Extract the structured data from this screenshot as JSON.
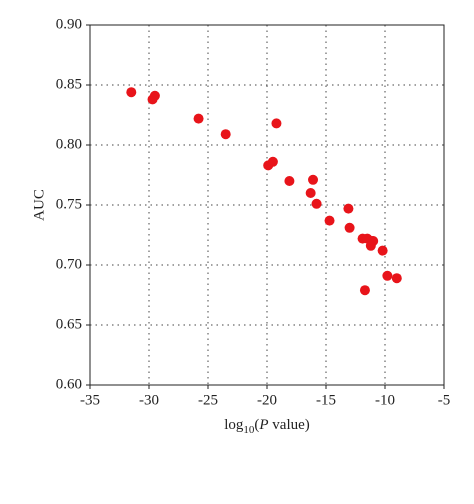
{
  "chart_data": {
    "type": "scatter",
    "ylabel": "AUC",
    "xlabel_parts": [
      "log",
      "10",
      "(",
      "P",
      " value)"
    ],
    "x": [
      -31.5,
      -29.7,
      -29.5,
      -25.8,
      -23.5,
      -19.2,
      -19.9,
      -19.5,
      -18.1,
      -16.1,
      -16.3,
      -15.8,
      -14.7,
      -13.1,
      -13.0,
      -11.9,
      -11.5,
      -11.1,
      -11.0,
      -11.2,
      -10.2,
      -9.8,
      -9.0,
      -11.7
    ],
    "series": [
      {
        "color": "#e8141a",
        "values": [
          0.844,
          0.838,
          0.841,
          0.822,
          0.809,
          0.818,
          0.783,
          0.786,
          0.77,
          0.771,
          0.76,
          0.751,
          0.737,
          0.747,
          0.731,
          0.722,
          0.722,
          0.72,
          0.72,
          0.716,
          0.712,
          0.691,
          0.689,
          0.679
        ]
      }
    ],
    "xlim": [
      -35,
      -5
    ],
    "xticks": [
      -35,
      -30,
      -25,
      -20,
      -15,
      -10,
      -5
    ],
    "ylim": [
      0.6,
      0.9
    ],
    "yticks": [
      {
        "value": 0.6,
        "label": "0.60"
      },
      0.65,
      {
        "value": 0.7,
        "label": "0.70"
      },
      0.75,
      {
        "value": 0.8,
        "label": "0.80"
      },
      0.85,
      {
        "value": 0.9,
        "label": "0.90"
      }
    ],
    "grid": true
  }
}
